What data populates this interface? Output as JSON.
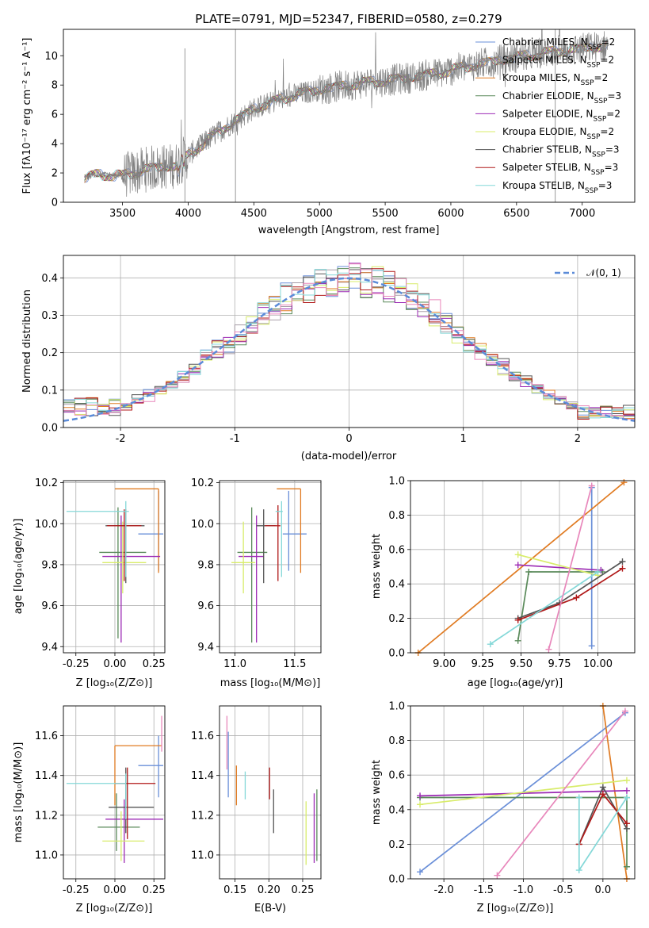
{
  "panels": {
    "spectrum": {
      "title": "PLATE=0791, MJD=52347, FIBERID=0580, z=0.279",
      "xlabel": "wavelength [Angstrom, rest frame]",
      "ylabel": "Flux [fλ10⁻¹⁷ erg cm⁻² s⁻¹ A⁻¹]"
    },
    "residuals": {
      "xlabel": "(data-model)/error",
      "ylabel": "Normed distribution",
      "legend": "𝒩(0, 1)"
    },
    "age_z": {
      "xlabel": "Z [log₁₀(Z/Z⊙)]",
      "ylabel": "age  [log₁₀(age/yr)]"
    },
    "age_mass": {
      "xlabel": "mass [log₁₀(M/M⊙)]"
    },
    "weight_age": {
      "xlabel": "age  [log₁₀(age/yr)]",
      "ylabel": "mass weight"
    },
    "mass_z": {
      "xlabel": "Z [log₁₀(Z/Z⊙)]",
      "ylabel": "mass [log₁₀(M/M⊙)]"
    },
    "mass_ebv": {
      "xlabel": "E(B-V)"
    },
    "weight_z": {
      "xlabel": "Z [log₁₀(Z/Z⊙)]",
      "ylabel": "mass weight"
    }
  },
  "chart_data": [
    {
      "id": "spectrum",
      "type": "line",
      "xlim": [
        3050,
        7400
      ],
      "ylim": [
        0,
        11.8
      ],
      "xticks": [
        3500,
        4000,
        4500,
        5000,
        5500,
        6000,
        6500,
        7000
      ],
      "yticks": [
        0,
        2,
        4,
        6,
        8,
        10
      ],
      "data_color": "#808080",
      "continuum": {
        "x": [
          3200,
          3300,
          3500,
          3700,
          3900,
          4000,
          4200,
          4500,
          4800,
          5000,
          5300,
          5600,
          5900,
          6200,
          6500,
          6800,
          7000,
          7200
        ],
        "y": [
          1.6,
          1.9,
          1.8,
          2.3,
          2.5,
          3.2,
          4.6,
          6.4,
          7.3,
          7.7,
          8.1,
          8.4,
          8.8,
          9.4,
          9.9,
          10.3,
          10.5,
          10.7
        ]
      },
      "series": [
        {
          "name": "Chabrier MILES, N_SSP=2",
          "color": "#6a8fd8"
        },
        {
          "name": "Salpeter MILES, N_SSP=2",
          "color": "#a89ea8"
        },
        {
          "name": "Kroupa MILES, N_SSP=2",
          "color": "#e07b22"
        },
        {
          "name": "Chabrier ELODIE, N_SSP=3",
          "color": "#5a8a5a"
        },
        {
          "name": "Salpeter ELODIE, N_SSP=2",
          "color": "#9c2ab4"
        },
        {
          "name": "Kroupa ELODIE, N_SSP=2",
          "color": "#d8ec6a"
        },
        {
          "name": "Chabrier STELIB, N_SSP=3",
          "color": "#555555"
        },
        {
          "name": "Salpeter STELIB, N_SSP=3",
          "color": "#b01818"
        },
        {
          "name": "Kroupa STELIB, N_SSP=3",
          "color": "#84d8d8"
        }
      ]
    },
    {
      "id": "residuals",
      "type": "line",
      "xlim": [
        -2.5,
        2.5
      ],
      "ylim": [
        0,
        0.46
      ],
      "xticks": [
        -2,
        -1,
        0,
        1,
        2
      ],
      "yticks": [
        0.0,
        0.1,
        0.2,
        0.3,
        0.4
      ],
      "gauss_color": "#5b8bd8",
      "bin_width": 0.1
    },
    {
      "id": "age_z",
      "type": "scatter",
      "xlim": [
        -0.33,
        0.32
      ],
      "ylim": [
        9.37,
        10.21
      ],
      "xticks": [
        -0.25,
        0.0,
        0.25
      ],
      "yticks": [
        9.4,
        9.6,
        9.8,
        10.0,
        10.2
      ],
      "points": [
        {
          "x": 0.28,
          "y": 9.95,
          "xerr": [
            0.13,
            0.03
          ],
          "yerr": [
            0.18,
            0.21
          ],
          "color": "#6a8fd8"
        },
        {
          "x": 0.28,
          "y": 10.17,
          "xerr": [
            0.28,
            0.0
          ],
          "yerr": [
            0.41,
            0.0
          ],
          "color": "#e07b22"
        },
        {
          "x": 0.02,
          "y": 9.86,
          "xerr": [
            0.12,
            0.18
          ],
          "yerr": [
            0.42,
            0.22
          ],
          "color": "#5a8a5a"
        },
        {
          "x": 0.04,
          "y": 9.84,
          "xerr": [
            0.12,
            0.25
          ],
          "yerr": [
            0.42,
            0.2
          ],
          "color": "#9c2ab4"
        },
        {
          "x": 0.05,
          "y": 9.81,
          "xerr": [
            0.13,
            0.15
          ],
          "yerr": [
            0.15,
            0.2
          ],
          "color": "#d8ec6a"
        },
        {
          "x": 0.07,
          "y": 9.99,
          "xerr": [
            0.13,
            0.12
          ],
          "yerr": [
            0.28,
            0.08
          ],
          "color": "#555555"
        },
        {
          "x": 0.06,
          "y": 9.99,
          "xerr": [
            0.11,
            0.11
          ],
          "yerr": [
            0.27,
            0.08
          ],
          "color": "#b01818"
        },
        {
          "x": 0.07,
          "y": 10.06,
          "xerr": [
            0.38,
            0.02
          ],
          "yerr": [
            0.32,
            0.05
          ],
          "color": "#84d8d8"
        }
      ]
    },
    {
      "id": "age_mass",
      "type": "scatter",
      "xlim": [
        10.87,
        11.72
      ],
      "ylim": [
        9.37,
        10.21
      ],
      "xticks": [
        11.0,
        11.5
      ],
      "yticks": [
        9.4,
        9.6,
        9.8,
        10.0,
        10.2
      ],
      "points": [
        {
          "x": 11.45,
          "y": 9.95,
          "xerr": [
            0.05,
            0.15
          ],
          "yerr": [
            0.18,
            0.21
          ],
          "color": "#6a8fd8"
        },
        {
          "x": 11.55,
          "y": 10.17,
          "xerr": [
            0.2,
            0.0
          ],
          "yerr": [
            0.41,
            0.0
          ],
          "color": "#e07b22"
        },
        {
          "x": 11.14,
          "y": 9.86,
          "xerr": [
            0.12,
            0.13
          ],
          "yerr": [
            0.44,
            0.22
          ],
          "color": "#5a8a5a"
        },
        {
          "x": 11.18,
          "y": 9.84,
          "xerr": [
            0.15,
            0.06
          ],
          "yerr": [
            0.42,
            0.2
          ],
          "color": "#9c2ab4"
        },
        {
          "x": 11.07,
          "y": 9.81,
          "xerr": [
            0.1,
            0.1
          ],
          "yerr": [
            0.15,
            0.2
          ],
          "color": "#d8ec6a"
        },
        {
          "x": 11.24,
          "y": 9.99,
          "xerr": [
            0.06,
            0.1
          ],
          "yerr": [
            0.28,
            0.08
          ],
          "color": "#555555"
        },
        {
          "x": 11.36,
          "y": 9.99,
          "xerr": [
            0.11,
            0.02
          ],
          "yerr": [
            0.27,
            0.1
          ],
          "color": "#b01818"
        },
        {
          "x": 11.39,
          "y": 10.06,
          "xerr": [
            0.05,
            0.01
          ],
          "yerr": [
            0.32,
            0.05
          ],
          "color": "#84d8d8"
        }
      ]
    },
    {
      "id": "weight_age",
      "type": "line",
      "xlim": [
        8.78,
        10.24
      ],
      "ylim": [
        0,
        1
      ],
      "xticks": [
        9.0,
        9.25,
        9.5,
        9.75,
        10.0
      ],
      "yticks": [
        0.0,
        0.2,
        0.4,
        0.6,
        0.8,
        1.0
      ],
      "series": [
        {
          "color": "#6a8fd8",
          "x": [
            9.96,
            9.96
          ],
          "y": [
            0.04,
            0.96
          ]
        },
        {
          "color": "#e07b22",
          "x": [
            8.83,
            10.17
          ],
          "y": [
            0.0,
            0.99
          ]
        },
        {
          "color": "#5a8a5a",
          "x": [
            9.48,
            9.55,
            10.03
          ],
          "y": [
            0.07,
            0.47,
            0.47
          ]
        },
        {
          "color": "#9c2ab4",
          "x": [
            9.48,
            10.02
          ],
          "y": [
            0.51,
            0.48
          ]
        },
        {
          "color": "#d8ec6a",
          "x": [
            9.48,
            10.0
          ],
          "y": [
            0.57,
            0.45
          ]
        },
        {
          "color": "#555555",
          "x": [
            9.48,
            9.75,
            10.16
          ],
          "y": [
            0.2,
            0.29,
            0.53
          ]
        },
        {
          "color": "#b01818",
          "x": [
            9.48,
            9.86,
            10.16
          ],
          "y": [
            0.19,
            0.32,
            0.49
          ]
        },
        {
          "color": "#84d8d8",
          "x": [
            9.3,
            10.0
          ],
          "y": [
            0.05,
            0.47
          ]
        },
        {
          "color": "#e887bb",
          "x": [
            9.68,
            9.96
          ],
          "y": [
            0.02,
            0.97
          ]
        }
      ]
    },
    {
      "id": "mass_z",
      "type": "scatter",
      "xlim": [
        -0.33,
        0.32
      ],
      "ylim": [
        10.88,
        11.75
      ],
      "xticks": [
        -0.25,
        0.0,
        0.25
      ],
      "yticks": [
        11.0,
        11.2,
        11.4,
        11.6
      ],
      "points": [
        {
          "x": 0.28,
          "y": 11.45,
          "xerr": [
            0.13,
            0.03
          ],
          "yerr": [
            0.16,
            0.15
          ],
          "color": "#6a8fd8"
        },
        {
          "x": 0.0,
          "y": 11.55,
          "xerr": [
            0.0,
            0.3
          ],
          "yerr": [
            0.3,
            0.0
          ],
          "color": "#e07b22"
        },
        {
          "x": 0.01,
          "y": 11.14,
          "xerr": [
            0.12,
            0.15
          ],
          "yerr": [
            0.12,
            0.17
          ],
          "color": "#5a8a5a"
        },
        {
          "x": 0.06,
          "y": 11.18,
          "xerr": [
            0.12,
            0.25
          ],
          "yerr": [
            0.22,
            0.1
          ],
          "color": "#9c2ab4"
        },
        {
          "x": 0.04,
          "y": 11.07,
          "xerr": [
            0.12,
            0.15
          ],
          "yerr": [
            0.1,
            0.15
          ],
          "color": "#d8ec6a"
        },
        {
          "x": 0.07,
          "y": 11.24,
          "xerr": [
            0.11,
            0.18
          ],
          "yerr": [
            0.13,
            0.2
          ],
          "color": "#555555"
        },
        {
          "x": 0.08,
          "y": 11.36,
          "xerr": [
            0.08,
            0.18
          ],
          "yerr": [
            0.28,
            0.08
          ],
          "color": "#b01818"
        },
        {
          "x": 0.07,
          "y": 11.36,
          "xerr": [
            0.38,
            0.0
          ],
          "yerr": [
            0.18,
            0.05
          ],
          "color": "#84d8d8"
        },
        {
          "x": 0.3,
          "y": 11.6,
          "xerr": [
            0.0,
            0.0
          ],
          "yerr": [
            0.08,
            0.1
          ],
          "color": "#e887bb"
        }
      ]
    },
    {
      "id": "mass_ebv",
      "type": "scatter",
      "xlim": [
        0.127,
        0.277
      ],
      "ylim": [
        10.88,
        11.75
      ],
      "xticks": [
        0.15,
        0.2,
        0.25
      ],
      "yticks": [
        11.0,
        11.2,
        11.4,
        11.6
      ],
      "points": [
        {
          "x": 0.14,
          "y": 11.45,
          "yerr": [
            0.16,
            0.17
          ],
          "color": "#6a8fd8"
        },
        {
          "x": 0.152,
          "y": 11.35,
          "yerr": [
            0.1,
            0.1
          ],
          "color": "#e07b22"
        },
        {
          "x": 0.165,
          "y": 11.36,
          "yerr": [
            0.08,
            0.06
          ],
          "color": "#84d8d8"
        },
        {
          "x": 0.201,
          "y": 11.36,
          "yerr": [
            0.08,
            0.08
          ],
          "color": "#b01818"
        },
        {
          "x": 0.207,
          "y": 11.22,
          "yerr": [
            0.11,
            0.11
          ],
          "color": "#555555"
        },
        {
          "x": 0.255,
          "y": 11.1,
          "yerr": [
            0.15,
            0.17
          ],
          "color": "#d8ec6a"
        },
        {
          "x": 0.267,
          "y": 11.13,
          "yerr": [
            0.17,
            0.18
          ],
          "color": "#9c2ab4"
        },
        {
          "x": 0.271,
          "y": 11.15,
          "yerr": [
            0.18,
            0.18
          ],
          "color": "#5a8a5a"
        },
        {
          "x": 0.138,
          "y": 11.56,
          "yerr": [
            0.13,
            0.14
          ],
          "color": "#e887bb"
        }
      ]
    },
    {
      "id": "weight_z",
      "type": "line",
      "xlim": [
        -2.42,
        0.4
      ],
      "ylim": [
        0,
        1
      ],
      "xticks": [
        -2.0,
        -1.5,
        -1.0,
        -0.5,
        0.0
      ],
      "yticks": [
        0.0,
        0.2,
        0.4,
        0.6,
        0.8,
        1.0
      ],
      "series": [
        {
          "color": "#6a8fd8",
          "x": [
            -2.3,
            0.28
          ],
          "y": [
            0.04,
            0.96
          ]
        },
        {
          "color": "#e07b22",
          "x": [
            0.0,
            0.3
          ],
          "y": [
            1.0,
            0.0
          ]
        },
        {
          "color": "#5a8a5a",
          "x": [
            -2.3,
            0.3,
            0.3
          ],
          "y": [
            0.47,
            0.47,
            0.07
          ]
        },
        {
          "color": "#9c2ab4",
          "x": [
            -2.3,
            0.3
          ],
          "y": [
            0.48,
            0.51
          ]
        },
        {
          "color": "#d8ec6a",
          "x": [
            -2.3,
            0.3
          ],
          "y": [
            0.43,
            0.57
          ]
        },
        {
          "color": "#555555",
          "x": [
            -0.3,
            0.0,
            0.3
          ],
          "y": [
            0.2,
            0.53,
            0.29
          ]
        },
        {
          "color": "#b01818",
          "x": [
            -0.3,
            0.0,
            0.3
          ],
          "y": [
            0.2,
            0.49,
            0.32
          ]
        },
        {
          "color": "#84d8d8",
          "x": [
            -0.3,
            -0.3,
            0.3
          ],
          "y": [
            0.47,
            0.05,
            0.47
          ]
        },
        {
          "color": "#e887bb",
          "x": [
            -1.33,
            0.28
          ],
          "y": [
            0.02,
            0.97
          ]
        }
      ]
    }
  ]
}
